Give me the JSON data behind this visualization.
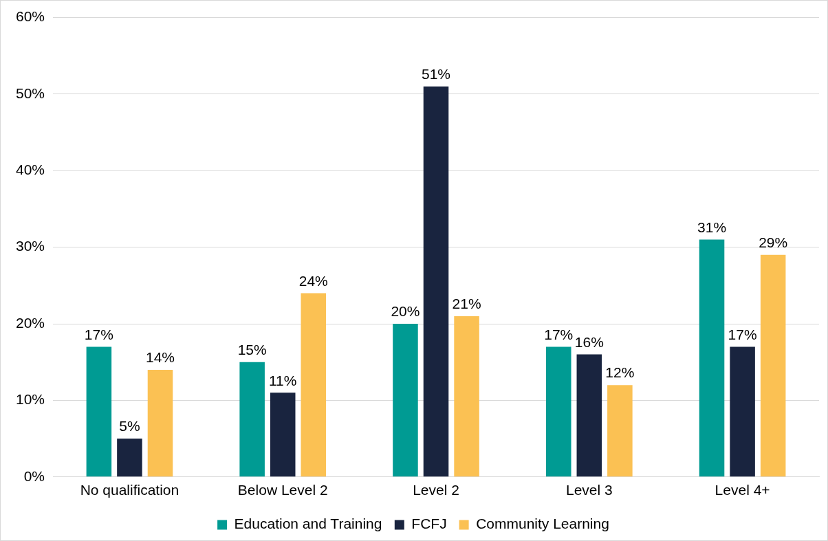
{
  "chart_data": {
    "type": "bar",
    "categories": [
      "No qualification",
      "Below Level 2",
      "Level 2",
      "Level 3",
      "Level 4+"
    ],
    "series": [
      {
        "name": "Education and Training",
        "color": "#009b93",
        "values": [
          17,
          15,
          20,
          17,
          31
        ],
        "value_labels": [
          "17%",
          "15%",
          "20%",
          "17%",
          "31%"
        ]
      },
      {
        "name": "FCFJ",
        "color": "#19243f",
        "values": [
          5,
          11,
          51,
          16,
          17
        ],
        "value_labels": [
          "5%",
          "11%",
          "51%",
          "16%",
          "17%"
        ]
      },
      {
        "name": "Community Learning",
        "color": "#fbc153",
        "values": [
          14,
          24,
          21,
          12,
          29
        ],
        "value_labels": [
          "14%",
          "24%",
          "21%",
          "12%",
          "29%"
        ]
      }
    ],
    "ylim": [
      0,
      60
    ],
    "yticks": [
      {
        "value": 0,
        "label": "0%"
      },
      {
        "value": 10,
        "label": "10%"
      },
      {
        "value": 20,
        "label": "20%"
      },
      {
        "value": 30,
        "label": "30%"
      },
      {
        "value": 40,
        "label": "40%"
      },
      {
        "value": 50,
        "label": "50%"
      },
      {
        "value": 60,
        "label": "60%"
      }
    ],
    "grid": "y",
    "legend": "bottom"
  }
}
